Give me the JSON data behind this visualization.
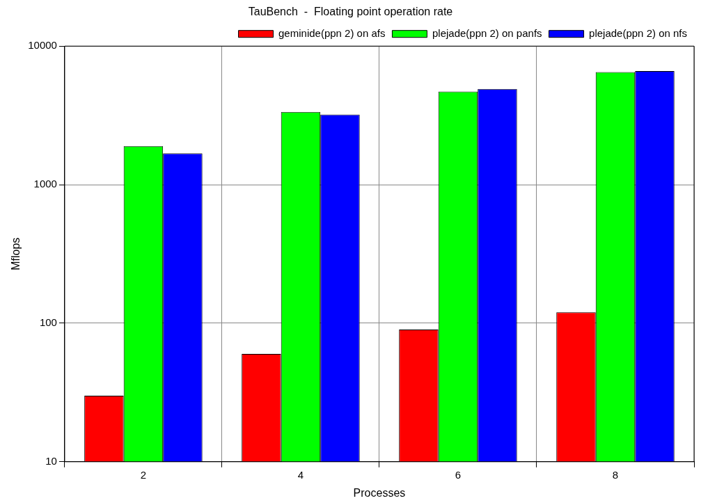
{
  "chart_data": {
    "type": "bar",
    "title": "TauBench  -  Floating point operation rate",
    "xlabel": "Processes",
    "ylabel": "Mflops",
    "categories": [
      "2",
      "4",
      "6",
      "8"
    ],
    "series": [
      {
        "name": "geminide(ppn 2) on afs",
        "color": "#ff0000",
        "values": [
          30,
          60,
          90,
          120
        ]
      },
      {
        "name": "plejade(ppn 2) on panfs",
        "color": "#00ff00",
        "values": [
          1900,
          3350,
          4700,
          6500
        ]
      },
      {
        "name": "plejade(ppn 2) on nfs",
        "color": "#0000ff",
        "values": [
          1680,
          3200,
          4900,
          6600
        ]
      }
    ],
    "log": true,
    "ylim": [
      10,
      10000
    ],
    "yticks": [
      10,
      100,
      1000,
      10000
    ],
    "grid": true,
    "legend": "top right"
  }
}
